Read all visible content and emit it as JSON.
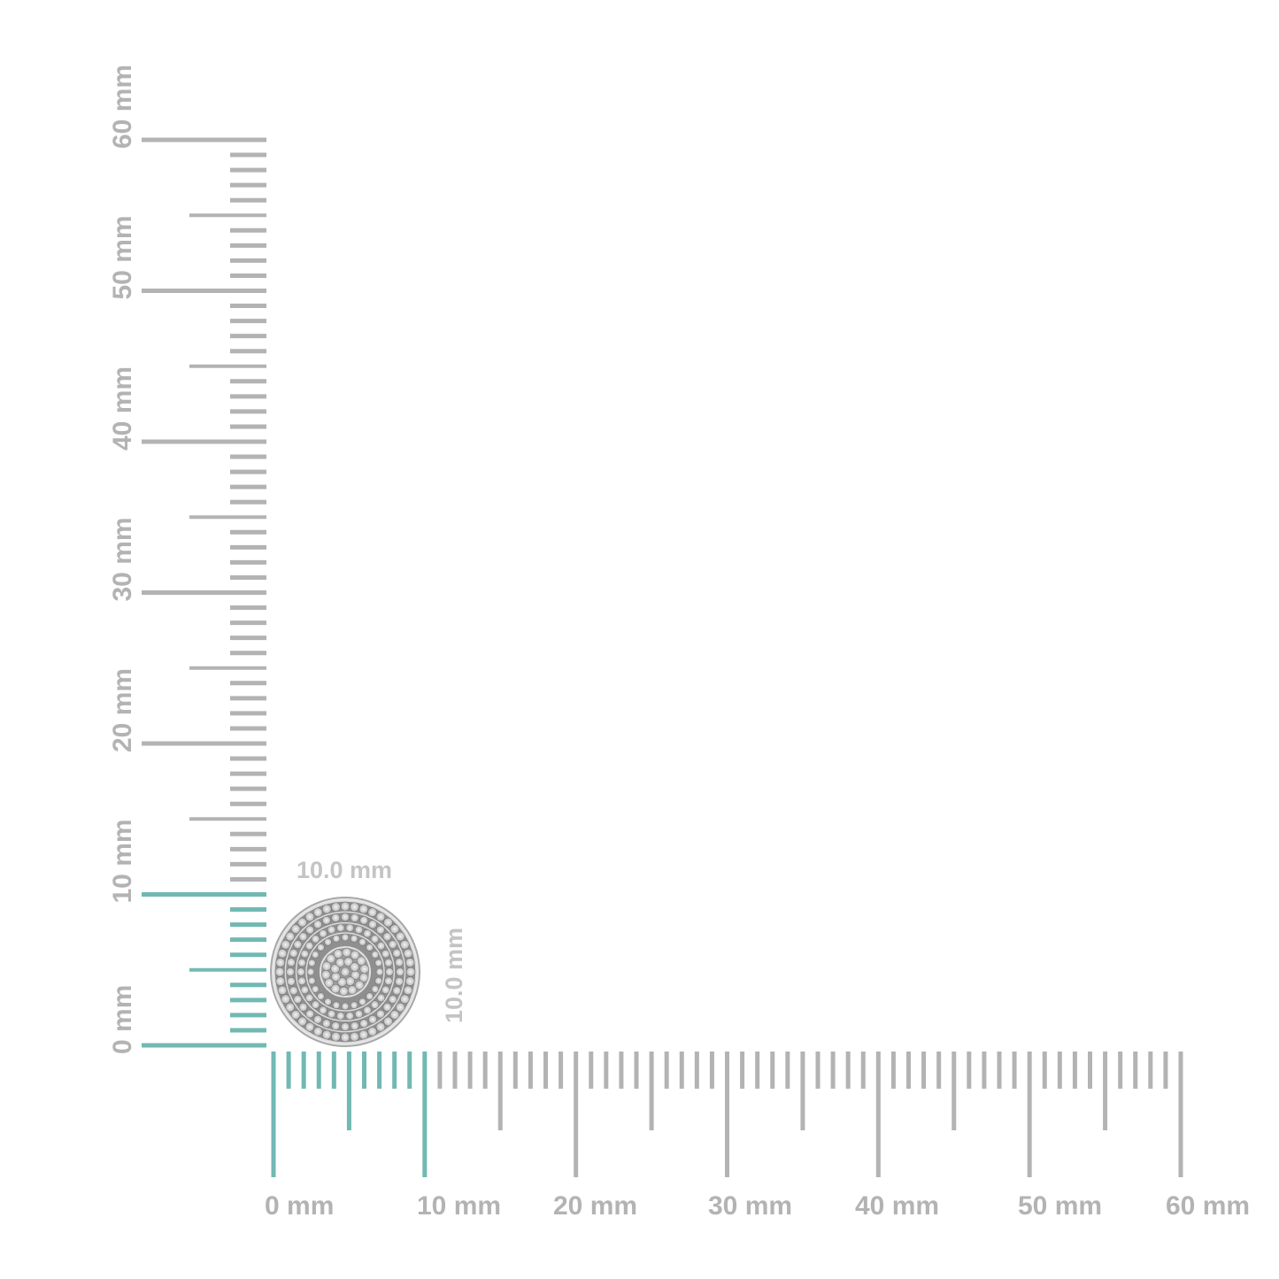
{
  "scale": {
    "unit": "mm",
    "max": 60,
    "highlight_range": [
      0,
      10
    ],
    "vertical_labels": [
      "0 mm",
      "10 mm",
      "20 mm",
      "30 mm",
      "40 mm",
      "50 mm",
      "60 mm"
    ],
    "horizontal_labels": [
      "0 mm",
      "10 mm",
      "20 mm",
      "30 mm",
      "40 mm",
      "50 mm",
      "60 mm"
    ]
  },
  "product": {
    "shape": "round pave earring",
    "width_label": "10.0 mm",
    "height_label": "10.0 mm"
  },
  "colors": {
    "ruler": "#b3b3b3",
    "highlight": "#72b8b3",
    "metal": "#9a9a9a"
  }
}
